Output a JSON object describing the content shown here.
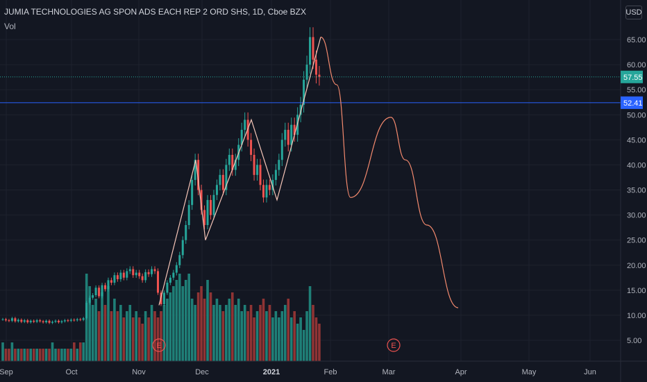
{
  "header": {
    "title": "JUMIA TECHNOLOGIES AG SPON ADS EACH REP 2 ORD SHS, 1D, Cboe BZX",
    "volume_label": "Vol",
    "currency_button": "USD"
  },
  "price_axis": {
    "ticks": [
      "65.00",
      "60.00",
      "55.00",
      "50.00",
      "45.00",
      "40.00",
      "35.00",
      "30.00",
      "25.00",
      "20.00",
      "15.00",
      "10.00",
      "5.00"
    ],
    "last_price_label": "57.55",
    "horizontal_line_label": "52.41"
  },
  "time_axis": {
    "ticks": [
      "Sep",
      "Oct",
      "Nov",
      "Dec",
      "2021",
      "Feb",
      "Mar",
      "Apr",
      "May",
      "Jun"
    ]
  },
  "earnings_markers": [
    "E",
    "E"
  ],
  "colors": {
    "background": "#131722",
    "up": "#26a69a",
    "down": "#ef5350",
    "up_volume": "#1f7f77",
    "down_volume": "#8f3434",
    "drawing_line": "#f7c6b8",
    "forecast_line": "#f48a6e",
    "horizontal_line": "#2962ff",
    "last_price": "#26a69a",
    "axis_text": "#b2b5be",
    "grid": "#1e222d"
  },
  "chart_data": {
    "type": "candlestick",
    "title": "JUMIA TECHNOLOGIES AG SPON ADS EACH REP 2 ORD SHS, 1D, Cboe BZX",
    "ylim": [
      0,
      70
    ],
    "y_ticks": [
      5,
      10,
      15,
      20,
      25,
      30,
      35,
      40,
      45,
      50,
      55,
      60,
      65
    ],
    "x_ticks": [
      "Sep",
      "Oct",
      "Nov",
      "Dec",
      "2021",
      "Feb",
      "Mar",
      "Apr",
      "May",
      "Jun"
    ],
    "last_price": 57.55,
    "horizontal_line": 52.41,
    "zigzag_drawing": [
      12,
      41,
      25,
      49,
      33,
      65.5
    ],
    "forecast_path": [
      65.5,
      56,
      33.5,
      49.5,
      41,
      28,
      11.5
    ],
    "candle_close_series": [
      9.2,
      9.0,
      8.9,
      9.4,
      8.8,
      9.1,
      8.7,
      9.0,
      8.6,
      8.9,
      8.7,
      9.0,
      8.8,
      8.6,
      8.9,
      8.5,
      8.7,
      8.9,
      8.6,
      8.8,
      9.0,
      8.9,
      9.1,
      9.0,
      9.2,
      9.1,
      9.4,
      12.5,
      13.5,
      14.0,
      15.5,
      13.8,
      16.0,
      15.2,
      17.0,
      16.5,
      18.0,
      17.2,
      18.5,
      17.5,
      18.8,
      19.2,
      18.0,
      18.5,
      17.8,
      17.0,
      18.6,
      18.2,
      19.2,
      18.8,
      14.5,
      12.2,
      14.5,
      16.5,
      17.5,
      18.5,
      20.0,
      22.0,
      25.0,
      28.0,
      32.0,
      37.0,
      41.0,
      35.0,
      31.0,
      28.0,
      33.0,
      30.0,
      34.0,
      36.0,
      38.0,
      35.0,
      40.0,
      42.0,
      39.0,
      41.0,
      44.0,
      47.0,
      49.0,
      45.0,
      42.0,
      38.0,
      40.0,
      36.0,
      33.5,
      36.0,
      35.0,
      37.0,
      39.0,
      41.0,
      45.0,
      47.0,
      44.0,
      48.0,
      46.0,
      50.0,
      52.0,
      57.0,
      60.0,
      65.5,
      61.0,
      58.0,
      57.55
    ],
    "volume_series": [
      3,
      2,
      2,
      3,
      2,
      2,
      2,
      2,
      2,
      2,
      2,
      2,
      2,
      2,
      2,
      2,
      3,
      2,
      2,
      2,
      2,
      2,
      2,
      3,
      2,
      3,
      3,
      14,
      12,
      9,
      10,
      8,
      11,
      9,
      12,
      8,
      10,
      8,
      9,
      7,
      8,
      9,
      7,
      8,
      7,
      6,
      8,
      7,
      9,
      8,
      7,
      8,
      9,
      10,
      11,
      12,
      13,
      14,
      12,
      13,
      14,
      10,
      9,
      11,
      12,
      10,
      13,
      11,
      9,
      10,
      9,
      8,
      9,
      10,
      11,
      9,
      10,
      8,
      9,
      8,
      9,
      7,
      8,
      9,
      10,
      8,
      9,
      7,
      8,
      7,
      8,
      9,
      10,
      7,
      8,
      6,
      7,
      5,
      8,
      12,
      9,
      7,
      6
    ]
  }
}
